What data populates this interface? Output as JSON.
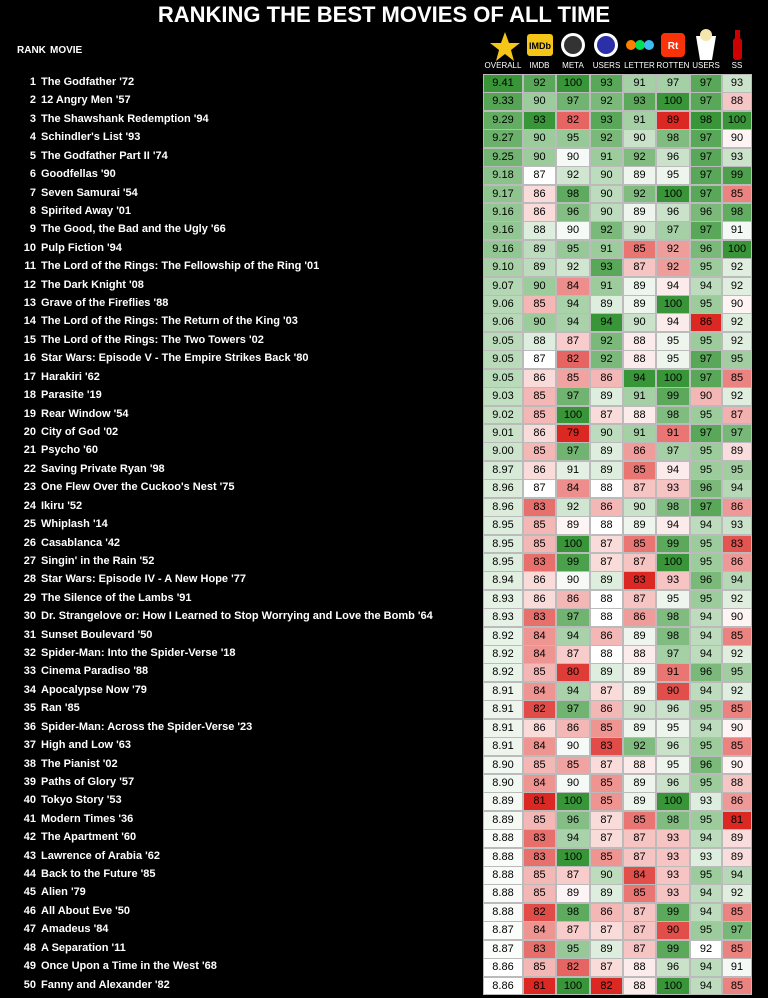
{
  "header": {
    "title": "RANKING THE BEST MOVIES OF ALL TIME",
    "rank_label": "RANK",
    "movie_label": "MOVIE",
    "imdb_logo": "IMDb",
    "rotten_logo": "Rt",
    "columns": [
      "OVERALL",
      "IMDB",
      "META",
      "USERS",
      "LETTER",
      "ROTTEN",
      "USERS",
      "SS"
    ]
  },
  "table": {
    "rows": [
      [
        "1",
        "The Godfather  '72",
        "9.41",
        92,
        100,
        93,
        91,
        97,
        97,
        93
      ],
      [
        "2",
        "12 Angry Men  '57",
        "9.33",
        90,
        97,
        92,
        93,
        100,
        97,
        88
      ],
      [
        "3",
        "The Shawshank Redemption  '94",
        "9.29",
        93,
        82,
        93,
        91,
        89,
        98,
        100
      ],
      [
        "4",
        "Schindler's List  '93",
        "9.27",
        90,
        95,
        92,
        90,
        98,
        97,
        90
      ],
      [
        "5",
        "The Godfather Part II  '74",
        "9.25",
        90,
        90,
        91,
        92,
        96,
        97,
        93
      ],
      [
        "6",
        "Goodfellas  '90",
        "9.18",
        87,
        92,
        90,
        89,
        95,
        97,
        99
      ],
      [
        "7",
        "Seven Samurai  '54",
        "9.17",
        86,
        98,
        90,
        92,
        100,
        97,
        85
      ],
      [
        "8",
        "Spirited Away  '01",
        "9.16",
        86,
        96,
        90,
        89,
        96,
        96,
        98
      ],
      [
        "9",
        "The Good, the Bad and the Ugly  '66",
        "9.16",
        88,
        90,
        92,
        90,
        97,
        97,
        91
      ],
      [
        "10",
        "Pulp Fiction  '94",
        "9.16",
        89,
        95,
        91,
        85,
        92,
        96,
        100
      ],
      [
        "11",
        "The Lord of the Rings: The Fellowship of the Ring  '01",
        "9.10",
        89,
        92,
        93,
        87,
        92,
        95,
        92
      ],
      [
        "12",
        "The Dark Knight  '08",
        "9.07",
        90,
        84,
        91,
        89,
        94,
        94,
        92
      ],
      [
        "13",
        "Grave of the Fireflies  '88",
        "9.06",
        85,
        94,
        89,
        89,
        100,
        95,
        90
      ],
      [
        "14",
        "The Lord of the Rings: The Return of the King  '03",
        "9.06",
        90,
        94,
        94,
        90,
        94,
        86,
        92
      ],
      [
        "15",
        "The Lord of the Rings: The Two Towers  '02",
        "9.05",
        88,
        87,
        92,
        88,
        95,
        95,
        92
      ],
      [
        "16",
        "Star Wars: Episode V - The Empire Strikes Back  '80",
        "9.05",
        87,
        82,
        92,
        88,
        95,
        97,
        95
      ],
      [
        "17",
        "Harakiri  '62",
        "9.05",
        86,
        85,
        86,
        94,
        100,
        97,
        85
      ],
      [
        "18",
        "Parasite  '19",
        "9.03",
        85,
        97,
        89,
        91,
        99,
        90,
        92
      ],
      [
        "19",
        "Rear Window  '54",
        "9.02",
        85,
        100,
        87,
        88,
        98,
        95,
        87
      ],
      [
        "20",
        "City of God  '02",
        "9.01",
        86,
        79,
        90,
        91,
        91,
        97,
        97
      ],
      [
        "21",
        "Psycho  '60",
        "9.00",
        85,
        97,
        89,
        86,
        97,
        95,
        89
      ],
      [
        "22",
        "Saving Private Ryan  '98",
        "8.97",
        86,
        91,
        89,
        85,
        94,
        95,
        95
      ],
      [
        "23",
        "One Flew Over the Cuckoo's Nest  '75",
        "8.96",
        87,
        84,
        88,
        87,
        93,
        96,
        94
      ],
      [
        "24",
        "Ikiru  '52",
        "8.96",
        83,
        92,
        86,
        90,
        98,
        97,
        86
      ],
      [
        "25",
        "Whiplash  '14",
        "8.95",
        85,
        89,
        88,
        89,
        94,
        94,
        93
      ],
      [
        "26",
        "Casablanca  '42",
        "8.95",
        85,
        100,
        87,
        85,
        99,
        95,
        83
      ],
      [
        "27",
        "Singin' in the Rain  '52",
        "8.95",
        83,
        99,
        87,
        87,
        100,
        95,
        86
      ],
      [
        "28",
        "Star Wars: Episode IV - A New Hope  '77",
        "8.94",
        86,
        90,
        89,
        83,
        93,
        96,
        94
      ],
      [
        "29",
        "The Silence of the Lambs  '91",
        "8.93",
        86,
        86,
        88,
        87,
        95,
        95,
        92
      ],
      [
        "30",
        "Dr. Strangelove or: How I Learned to Stop Worrying and Love the Bomb  '64",
        "8.93",
        83,
        97,
        88,
        86,
        98,
        94,
        90
      ],
      [
        "31",
        "Sunset Boulevard  '50",
        "8.92",
        84,
        94,
        86,
        89,
        98,
        94,
        85
      ],
      [
        "32",
        "Spider-Man: Into the Spider-Verse  '18",
        "8.92",
        84,
        87,
        88,
        88,
        97,
        94,
        92
      ],
      [
        "33",
        "Cinema Paradiso  '88",
        "8.92",
        85,
        80,
        89,
        89,
        91,
        96,
        95
      ],
      [
        "34",
        "Apocalypse Now  '79",
        "8.91",
        84,
        94,
        87,
        89,
        90,
        94,
        92
      ],
      [
        "35",
        "Ran  '85",
        "8.91",
        82,
        97,
        86,
        90,
        96,
        95,
        85
      ],
      [
        "36",
        "Spider-Man: Across the Spider-Verse  '23",
        "8.91",
        86,
        86,
        85,
        89,
        95,
        94,
        90
      ],
      [
        "37",
        "High and Low  '63",
        "8.91",
        84,
        90,
        83,
        92,
        96,
        95,
        85
      ],
      [
        "38",
        "The Pianist  '02",
        "8.90",
        85,
        85,
        87,
        88,
        95,
        96,
        90
      ],
      [
        "39",
        "Paths of Glory  '57",
        "8.90",
        84,
        90,
        85,
        89,
        96,
        95,
        88
      ],
      [
        "40",
        "Tokyo Story  '53",
        "8.89",
        81,
        100,
        85,
        89,
        100,
        93,
        86
      ],
      [
        "41",
        "Modern Times  '36",
        "8.89",
        85,
        96,
        87,
        85,
        98,
        95,
        81
      ],
      [
        "42",
        "The Apartment  '60",
        "8.88",
        83,
        94,
        87,
        87,
        93,
        94,
        89
      ],
      [
        "43",
        "Lawrence of Arabia  '62",
        "8.88",
        83,
        100,
        85,
        87,
        93,
        93,
        89
      ],
      [
        "44",
        "Back to the Future  '85",
        "8.88",
        85,
        87,
        90,
        84,
        93,
        95,
        94
      ],
      [
        "45",
        "Alien  '79",
        "8.88",
        85,
        89,
        89,
        85,
        93,
        94,
        92
      ],
      [
        "46",
        "All About Eve  '50",
        "8.88",
        82,
        98,
        86,
        87,
        99,
        94,
        85
      ],
      [
        "47",
        "Amadeus  '84",
        "8.87",
        84,
        87,
        87,
        87,
        90,
        95,
        97
      ],
      [
        "48",
        "A Separation  '11",
        "8.87",
        83,
        95,
        89,
        87,
        99,
        92,
        85
      ],
      [
        "49",
        "Once Upon a Time in the West  '68",
        "8.86",
        85,
        82,
        87,
        88,
        96,
        94,
        91
      ],
      [
        "50",
        "Fanny and Alexander  '82",
        "8.86",
        81,
        100,
        82,
        88,
        100,
        94,
        85
      ]
    ]
  }
}
